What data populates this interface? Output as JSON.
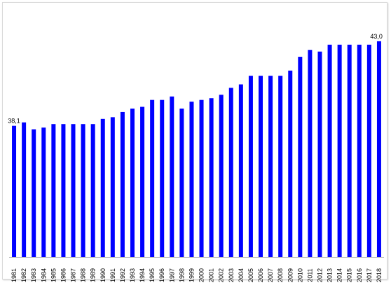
{
  "chart_data": {
    "type": "bar",
    "categories": [
      "1981",
      "1982",
      "1983",
      "1984",
      "1985",
      "1986",
      "1987",
      "1988",
      "1989",
      "1990",
      "1991",
      "1992",
      "1993",
      "1994",
      "1995",
      "1996",
      "1997",
      "1998",
      "1999",
      "2000",
      "2001",
      "2002",
      "2003",
      "2004",
      "2005",
      "2006",
      "2007",
      "2008",
      "2009",
      "2010",
      "2011",
      "2012",
      "2013",
      "2014",
      "2015",
      "2016",
      "2017",
      "2018"
    ],
    "values": [
      38.1,
      38.3,
      37.9,
      38.0,
      38.2,
      38.2,
      38.2,
      38.2,
      38.2,
      38.5,
      38.6,
      38.9,
      39.1,
      39.2,
      39.6,
      39.6,
      39.8,
      39.1,
      39.5,
      39.6,
      39.7,
      39.9,
      40.3,
      40.5,
      41.0,
      41.0,
      41.0,
      41.0,
      41.3,
      42.1,
      42.5,
      42.4,
      42.8,
      42.8,
      42.8,
      42.8,
      42.8,
      43.0
    ],
    "data_labels": [
      {
        "category": "1981",
        "text": "38,1"
      },
      {
        "category": "2018",
        "text": "43,0"
      }
    ],
    "bar_color": "#0000ff",
    "ylim": [
      30.5,
      43.4
    ],
    "grid": false,
    "legend": "none",
    "title": "",
    "xlabel": "",
    "ylabel": ""
  }
}
